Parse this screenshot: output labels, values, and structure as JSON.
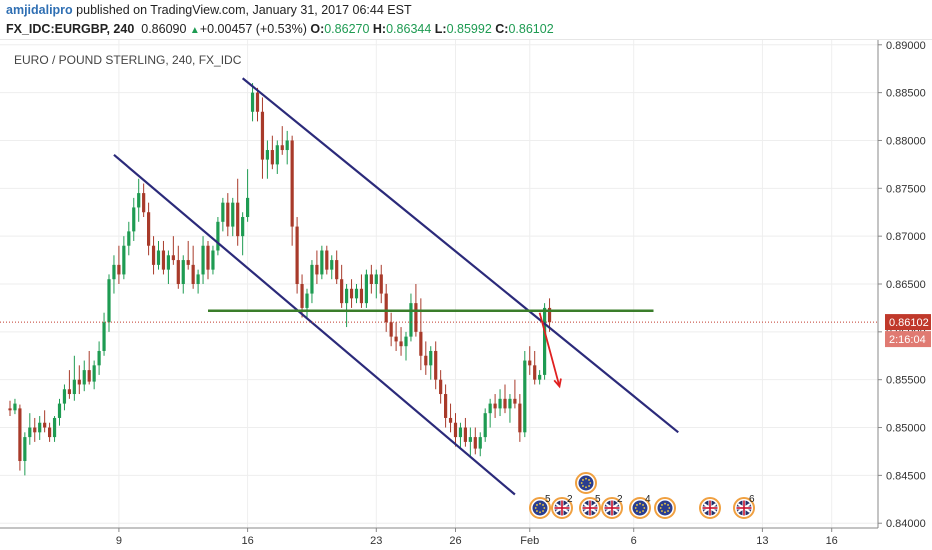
{
  "header": {
    "author": "amjidalipro",
    "published_text": "published on TradingView.com, January 31, 2017 06:44 EST",
    "symbol": "FX_IDC:EURGBP, 240",
    "last": "0.86090",
    "change": "+0.00457 (+0.53%)",
    "o_label": "O:",
    "o_value": "0.86270",
    "h_label": "H:",
    "h_value": "0.86344",
    "l_label": "L:",
    "l_value": "0.85992",
    "c_label": "C:",
    "c_value": "0.86102"
  },
  "colors": {
    "up": "#1e9b52",
    "down": "#a83a2a",
    "channel": "#2b2a7a",
    "support": "#3a7d2a",
    "arrow": "#e02020",
    "price_label": "#c0392b",
    "grid": "#eeeeee"
  },
  "chart_data": {
    "type": "candlestick",
    "title": "EURO / POUND STERLING, 240, FX_IDC",
    "ylim": [
      0.8395,
      0.8905
    ],
    "y_ticks": [
      "0.89000",
      "0.88500",
      "0.88000",
      "0.87500",
      "0.87000",
      "0.86500",
      "0.86000",
      "0.85500",
      "0.85000",
      "0.84500",
      "0.84000"
    ],
    "x_ticks": [
      "9",
      "16",
      "23",
      "26",
      "Feb",
      "6",
      "13",
      "16"
    ],
    "last_price_label": "0.86102",
    "countdown_label": "2:16:04",
    "candles": [
      {
        "o": 0.852,
        "h": 0.8528,
        "l": 0.8512,
        "c": 0.8518
      },
      {
        "o": 0.8518,
        "h": 0.853,
        "l": 0.8514,
        "c": 0.8525
      },
      {
        "o": 0.852,
        "h": 0.8524,
        "l": 0.8455,
        "c": 0.8465
      },
      {
        "o": 0.8465,
        "h": 0.8495,
        "l": 0.845,
        "c": 0.849
      },
      {
        "o": 0.849,
        "h": 0.8515,
        "l": 0.8482,
        "c": 0.85
      },
      {
        "o": 0.85,
        "h": 0.851,
        "l": 0.8485,
        "c": 0.8495
      },
      {
        "o": 0.8495,
        "h": 0.8512,
        "l": 0.8487,
        "c": 0.8505
      },
      {
        "o": 0.8505,
        "h": 0.8518,
        "l": 0.8495,
        "c": 0.85
      },
      {
        "o": 0.85,
        "h": 0.8505,
        "l": 0.8485,
        "c": 0.849
      },
      {
        "o": 0.849,
        "h": 0.8512,
        "l": 0.8485,
        "c": 0.851
      },
      {
        "o": 0.851,
        "h": 0.853,
        "l": 0.8502,
        "c": 0.8525
      },
      {
        "o": 0.8525,
        "h": 0.8545,
        "l": 0.8518,
        "c": 0.854
      },
      {
        "o": 0.854,
        "h": 0.856,
        "l": 0.853,
        "c": 0.8535
      },
      {
        "o": 0.8535,
        "h": 0.8575,
        "l": 0.8528,
        "c": 0.855
      },
      {
        "o": 0.855,
        "h": 0.8565,
        "l": 0.8535,
        "c": 0.8545
      },
      {
        "o": 0.8545,
        "h": 0.857,
        "l": 0.8538,
        "c": 0.856
      },
      {
        "o": 0.856,
        "h": 0.858,
        "l": 0.8545,
        "c": 0.8548
      },
      {
        "o": 0.8548,
        "h": 0.857,
        "l": 0.854,
        "c": 0.8565
      },
      {
        "o": 0.8565,
        "h": 0.859,
        "l": 0.8555,
        "c": 0.858
      },
      {
        "o": 0.858,
        "h": 0.862,
        "l": 0.8575,
        "c": 0.861
      },
      {
        "o": 0.861,
        "h": 0.866,
        "l": 0.86,
        "c": 0.8655
      },
      {
        "o": 0.8655,
        "h": 0.868,
        "l": 0.864,
        "c": 0.867
      },
      {
        "o": 0.867,
        "h": 0.869,
        "l": 0.865,
        "c": 0.866
      },
      {
        "o": 0.866,
        "h": 0.87,
        "l": 0.8655,
        "c": 0.869
      },
      {
        "o": 0.869,
        "h": 0.8715,
        "l": 0.868,
        "c": 0.8705
      },
      {
        "o": 0.8705,
        "h": 0.874,
        "l": 0.8695,
        "c": 0.873
      },
      {
        "o": 0.873,
        "h": 0.876,
        "l": 0.8715,
        "c": 0.8745
      },
      {
        "o": 0.8745,
        "h": 0.8755,
        "l": 0.872,
        "c": 0.8725
      },
      {
        "o": 0.8725,
        "h": 0.8735,
        "l": 0.868,
        "c": 0.869
      },
      {
        "o": 0.869,
        "h": 0.87,
        "l": 0.866,
        "c": 0.867
      },
      {
        "o": 0.867,
        "h": 0.8695,
        "l": 0.8665,
        "c": 0.8685
      },
      {
        "o": 0.8685,
        "h": 0.8695,
        "l": 0.866,
        "c": 0.8665
      },
      {
        "o": 0.8665,
        "h": 0.8685,
        "l": 0.865,
        "c": 0.868
      },
      {
        "o": 0.868,
        "h": 0.87,
        "l": 0.867,
        "c": 0.8675
      },
      {
        "o": 0.8675,
        "h": 0.869,
        "l": 0.8645,
        "c": 0.865
      },
      {
        "o": 0.865,
        "h": 0.868,
        "l": 0.864,
        "c": 0.8675
      },
      {
        "o": 0.8675,
        "h": 0.8695,
        "l": 0.8665,
        "c": 0.867
      },
      {
        "o": 0.867,
        "h": 0.869,
        "l": 0.8645,
        "c": 0.865
      },
      {
        "o": 0.865,
        "h": 0.8665,
        "l": 0.864,
        "c": 0.866
      },
      {
        "o": 0.866,
        "h": 0.87,
        "l": 0.865,
        "c": 0.869
      },
      {
        "o": 0.869,
        "h": 0.8695,
        "l": 0.8655,
        "c": 0.8665
      },
      {
        "o": 0.8665,
        "h": 0.869,
        "l": 0.866,
        "c": 0.8685
      },
      {
        "o": 0.8685,
        "h": 0.872,
        "l": 0.868,
        "c": 0.8715
      },
      {
        "o": 0.8715,
        "h": 0.874,
        "l": 0.8705,
        "c": 0.8735
      },
      {
        "o": 0.8735,
        "h": 0.8745,
        "l": 0.87,
        "c": 0.871
      },
      {
        "o": 0.871,
        "h": 0.874,
        "l": 0.87,
        "c": 0.8735
      },
      {
        "o": 0.8735,
        "h": 0.876,
        "l": 0.869,
        "c": 0.87
      },
      {
        "o": 0.87,
        "h": 0.8725,
        "l": 0.868,
        "c": 0.872
      },
      {
        "o": 0.872,
        "h": 0.877,
        "l": 0.8715,
        "c": 0.874
      },
      {
        "o": 0.883,
        "h": 0.886,
        "l": 0.882,
        "c": 0.885
      },
      {
        "o": 0.885,
        "h": 0.8855,
        "l": 0.882,
        "c": 0.883
      },
      {
        "o": 0.883,
        "h": 0.8845,
        "l": 0.876,
        "c": 0.878
      },
      {
        "o": 0.878,
        "h": 0.88,
        "l": 0.876,
        "c": 0.879
      },
      {
        "o": 0.879,
        "h": 0.8805,
        "l": 0.877,
        "c": 0.8775
      },
      {
        "o": 0.8775,
        "h": 0.88,
        "l": 0.8765,
        "c": 0.8795
      },
      {
        "o": 0.8795,
        "h": 0.8815,
        "l": 0.8785,
        "c": 0.879
      },
      {
        "o": 0.879,
        "h": 0.881,
        "l": 0.8775,
        "c": 0.88
      },
      {
        "o": 0.88,
        "h": 0.8805,
        "l": 0.869,
        "c": 0.871
      },
      {
        "o": 0.871,
        "h": 0.872,
        "l": 0.864,
        "c": 0.865
      },
      {
        "o": 0.865,
        "h": 0.866,
        "l": 0.8615,
        "c": 0.8625
      },
      {
        "o": 0.8625,
        "h": 0.8645,
        "l": 0.8615,
        "c": 0.864
      },
      {
        "o": 0.864,
        "h": 0.8675,
        "l": 0.863,
        "c": 0.867
      },
      {
        "o": 0.867,
        "h": 0.8685,
        "l": 0.865,
        "c": 0.866
      },
      {
        "o": 0.866,
        "h": 0.869,
        "l": 0.8655,
        "c": 0.8685
      },
      {
        "o": 0.8685,
        "h": 0.869,
        "l": 0.866,
        "c": 0.8665
      },
      {
        "o": 0.8665,
        "h": 0.868,
        "l": 0.8655,
        "c": 0.8675
      },
      {
        "o": 0.8675,
        "h": 0.8685,
        "l": 0.865,
        "c": 0.8655
      },
      {
        "o": 0.8655,
        "h": 0.867,
        "l": 0.8625,
        "c": 0.863
      },
      {
        "o": 0.863,
        "h": 0.865,
        "l": 0.8605,
        "c": 0.8645
      },
      {
        "o": 0.8645,
        "h": 0.8655,
        "l": 0.8625,
        "c": 0.8635
      },
      {
        "o": 0.8635,
        "h": 0.865,
        "l": 0.863,
        "c": 0.8645
      },
      {
        "o": 0.8645,
        "h": 0.866,
        "l": 0.8625,
        "c": 0.863
      },
      {
        "o": 0.863,
        "h": 0.8665,
        "l": 0.8625,
        "c": 0.866
      },
      {
        "o": 0.866,
        "h": 0.867,
        "l": 0.864,
        "c": 0.865
      },
      {
        "o": 0.865,
        "h": 0.8665,
        "l": 0.8635,
        "c": 0.866
      },
      {
        "o": 0.866,
        "h": 0.867,
        "l": 0.863,
        "c": 0.864
      },
      {
        "o": 0.864,
        "h": 0.865,
        "l": 0.86,
        "c": 0.861
      },
      {
        "o": 0.861,
        "h": 0.862,
        "l": 0.8585,
        "c": 0.8595
      },
      {
        "o": 0.8595,
        "h": 0.861,
        "l": 0.858,
        "c": 0.859
      },
      {
        "o": 0.859,
        "h": 0.8605,
        "l": 0.8575,
        "c": 0.8585
      },
      {
        "o": 0.8585,
        "h": 0.86,
        "l": 0.857,
        "c": 0.8595
      },
      {
        "o": 0.8595,
        "h": 0.864,
        "l": 0.859,
        "c": 0.863
      },
      {
        "o": 0.863,
        "h": 0.865,
        "l": 0.8595,
        "c": 0.86
      },
      {
        "o": 0.86,
        "h": 0.8635,
        "l": 0.856,
        "c": 0.8575
      },
      {
        "o": 0.8575,
        "h": 0.859,
        "l": 0.8555,
        "c": 0.8565
      },
      {
        "o": 0.8565,
        "h": 0.8585,
        "l": 0.855,
        "c": 0.858
      },
      {
        "o": 0.858,
        "h": 0.859,
        "l": 0.854,
        "c": 0.855
      },
      {
        "o": 0.855,
        "h": 0.856,
        "l": 0.8525,
        "c": 0.8535
      },
      {
        "o": 0.8535,
        "h": 0.8545,
        "l": 0.85,
        "c": 0.851
      },
      {
        "o": 0.851,
        "h": 0.8525,
        "l": 0.8495,
        "c": 0.8505
      },
      {
        "o": 0.8505,
        "h": 0.8515,
        "l": 0.848,
        "c": 0.849
      },
      {
        "o": 0.849,
        "h": 0.8505,
        "l": 0.8478,
        "c": 0.85
      },
      {
        "o": 0.85,
        "h": 0.851,
        "l": 0.848,
        "c": 0.8485
      },
      {
        "o": 0.8485,
        "h": 0.85,
        "l": 0.847,
        "c": 0.849
      },
      {
        "o": 0.849,
        "h": 0.85,
        "l": 0.8472,
        "c": 0.8478
      },
      {
        "o": 0.8478,
        "h": 0.8495,
        "l": 0.847,
        "c": 0.849
      },
      {
        "o": 0.849,
        "h": 0.852,
        "l": 0.8485,
        "c": 0.8515
      },
      {
        "o": 0.8515,
        "h": 0.853,
        "l": 0.85,
        "c": 0.8525
      },
      {
        "o": 0.8525,
        "h": 0.8535,
        "l": 0.851,
        "c": 0.852
      },
      {
        "o": 0.852,
        "h": 0.854,
        "l": 0.8512,
        "c": 0.853
      },
      {
        "o": 0.853,
        "h": 0.8545,
        "l": 0.8515,
        "c": 0.852
      },
      {
        "o": 0.852,
        "h": 0.8535,
        "l": 0.8505,
        "c": 0.853
      },
      {
        "o": 0.853,
        "h": 0.855,
        "l": 0.852,
        "c": 0.8525
      },
      {
        "o": 0.8525,
        "h": 0.8535,
        "l": 0.8485,
        "c": 0.8495
      },
      {
        "o": 0.8495,
        "h": 0.858,
        "l": 0.849,
        "c": 0.857
      },
      {
        "o": 0.857,
        "h": 0.8585,
        "l": 0.8555,
        "c": 0.8565
      },
      {
        "o": 0.8565,
        "h": 0.858,
        "l": 0.8545,
        "c": 0.855
      },
      {
        "o": 0.855,
        "h": 0.856,
        "l": 0.8545,
        "c": 0.8555
      },
      {
        "o": 0.8555,
        "h": 0.863,
        "l": 0.855,
        "c": 0.8625
      },
      {
        "o": 0.8625,
        "h": 0.8635,
        "l": 0.86,
        "c": 0.861
      }
    ],
    "channel_upper": [
      {
        "i": 47,
        "y": 0.8865
      },
      {
        "i": 135,
        "y": 0.8495
      }
    ],
    "channel_lower": [
      {
        "i": 21,
        "y": 0.8785
      },
      {
        "i": 102,
        "y": 0.843
      }
    ],
    "support_line": {
      "y": 0.8622,
      "i_start": 40,
      "i_end": 130
    },
    "projection_arrow": [
      {
        "i": 107,
        "y": 0.862
      },
      {
        "i": 111,
        "y": 0.8543
      }
    ],
    "events": [
      {
        "flag": "EU",
        "count": "",
        "row": 1
      },
      {
        "flag": "EU",
        "count": "5",
        "row": 0
      },
      {
        "flag": "UK",
        "count": "2",
        "row": 0
      },
      {
        "flag": "UK",
        "count": "5",
        "row": 0
      },
      {
        "flag": "UK",
        "count": "2",
        "row": 0
      },
      {
        "flag": "EU",
        "count": "4",
        "row": 0
      },
      {
        "flag": "EU",
        "count": "",
        "row": 0
      },
      {
        "flag": "UK",
        "count": "",
        "row": 0
      },
      {
        "flag": "UK",
        "count": "6",
        "row": 0
      }
    ]
  }
}
